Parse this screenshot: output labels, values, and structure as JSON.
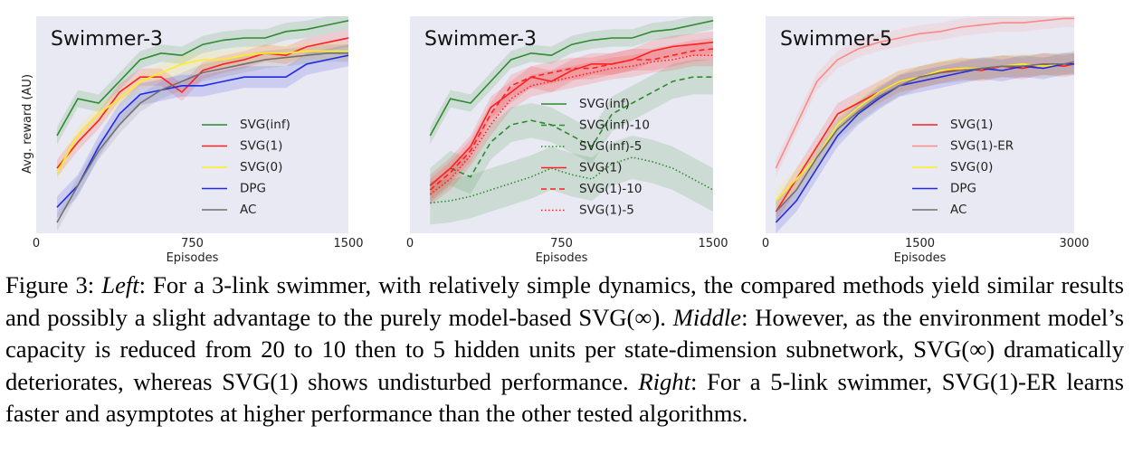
{
  "caption": {
    "label": "Figure 3:",
    "left_head": "Left",
    "left_text": ": For a 3-link swimmer, with relatively simple dynamics, the compared methods yield similar results and possibly a slight advantage to the purely model-based SVG(∞).",
    "middle_head": "Middle",
    "middle_text": ": However, as the environment model’s capacity is reduced from 20 to 10 then to 5 hidden units per state-dimension subnetwork, SVG(∞) dramatically deteriorates, whereas SVG(1) shows undisturbed performance.",
    "right_head": "Right",
    "right_text": ": For a 5-link swimmer, SVG(1)-ER learns faster and asymptotes at higher performance than the other tested algorithms."
  },
  "chart_data": [
    {
      "type": "line",
      "title": "Swimmer-3",
      "xlabel": "Episodes",
      "ylabel": "Avg. reward (AU)",
      "xlim": [
        0,
        1500
      ],
      "ylim": [
        0,
        1
      ],
      "xticks": [
        "0",
        "750",
        "1500"
      ],
      "grid": false,
      "legend_position": "lower-right",
      "background": "#e9e9f3",
      "x": [
        100,
        200,
        300,
        400,
        500,
        600,
        700,
        800,
        900,
        1000,
        1100,
        1200,
        1300,
        1400,
        1500
      ],
      "series": [
        {
          "name": "SVG(inf)",
          "color": "#2e8b2e",
          "style": "solid",
          "band": 0.04,
          "values": [
            0.45,
            0.62,
            0.6,
            0.7,
            0.8,
            0.83,
            0.82,
            0.87,
            0.89,
            0.9,
            0.9,
            0.93,
            0.94,
            0.96,
            0.98
          ]
        },
        {
          "name": "SVG(1)",
          "color": "#ff2020",
          "style": "solid",
          "band": 0.04,
          "values": [
            0.3,
            0.42,
            0.52,
            0.65,
            0.72,
            0.72,
            0.65,
            0.75,
            0.78,
            0.8,
            0.83,
            0.82,
            0.86,
            0.88,
            0.9
          ]
        },
        {
          "name": "SVG(0)",
          "color": "#ffee22",
          "style": "solid",
          "band": 0.04,
          "values": [
            0.28,
            0.45,
            0.55,
            0.62,
            0.7,
            0.74,
            0.78,
            0.8,
            0.8,
            0.82,
            0.83,
            0.83,
            0.84,
            0.84,
            0.84
          ]
        },
        {
          "name": "DPG",
          "color": "#1f2be0",
          "style": "solid",
          "band": 0.05,
          "values": [
            0.12,
            0.22,
            0.4,
            0.55,
            0.64,
            0.66,
            0.68,
            0.68,
            0.7,
            0.72,
            0.72,
            0.72,
            0.78,
            0.8,
            0.82
          ]
        },
        {
          "name": "AC",
          "color": "#707070",
          "style": "solid",
          "band": 0.04,
          "values": [
            0.05,
            0.22,
            0.38,
            0.5,
            0.6,
            0.66,
            0.7,
            0.74,
            0.76,
            0.78,
            0.8,
            0.81,
            0.82,
            0.83,
            0.83
          ]
        }
      ]
    },
    {
      "type": "line",
      "title": "Swimmer-3",
      "xlabel": "Episodes",
      "ylabel": "",
      "xlim": [
        0,
        1500
      ],
      "ylim": [
        0,
        1
      ],
      "xticks": [
        "0",
        "750",
        "1500"
      ],
      "grid": false,
      "legend_position": "center-right",
      "background": "#e9e9f3",
      "x": [
        100,
        200,
        300,
        400,
        500,
        600,
        700,
        800,
        900,
        1000,
        1100,
        1200,
        1300,
        1400,
        1500
      ],
      "series": [
        {
          "name": "SVG(inf)",
          "color": "#2e8b2e",
          "style": "solid",
          "band": 0.04,
          "values": [
            0.45,
            0.62,
            0.6,
            0.7,
            0.8,
            0.83,
            0.82,
            0.87,
            0.89,
            0.9,
            0.9,
            0.93,
            0.94,
            0.96,
            0.98
          ]
        },
        {
          "name": "SVG(inf)-10",
          "color": "#2e8b2e",
          "style": "dashed",
          "band": 0.08,
          "values": [
            0.22,
            0.3,
            0.26,
            0.42,
            0.5,
            0.52,
            0.5,
            0.45,
            0.4,
            0.55,
            0.6,
            0.65,
            0.7,
            0.72,
            0.72
          ]
        },
        {
          "name": "SVG(inf)-5",
          "color": "#2e8b2e",
          "style": "dotted",
          "band": 0.1,
          "values": [
            0.14,
            0.15,
            0.17,
            0.2,
            0.23,
            0.26,
            0.3,
            0.27,
            0.25,
            0.32,
            0.35,
            0.33,
            0.3,
            0.25,
            0.2
          ]
        },
        {
          "name": "SVG(1)",
          "color": "#ff2020",
          "style": "solid",
          "band": 0.05,
          "values": [
            0.22,
            0.3,
            0.4,
            0.58,
            0.65,
            0.72,
            0.7,
            0.75,
            0.78,
            0.78,
            0.8,
            0.84,
            0.86,
            0.87,
            0.88
          ]
        },
        {
          "name": "SVG(1)-10",
          "color": "#ff2020",
          "style": "dashed",
          "band": 0.05,
          "values": [
            0.2,
            0.28,
            0.38,
            0.55,
            0.68,
            0.72,
            0.74,
            0.76,
            0.76,
            0.78,
            0.8,
            0.8,
            0.82,
            0.84,
            0.85
          ]
        },
        {
          "name": "SVG(1)-5",
          "color": "#ff2020",
          "style": "dotted",
          "band": 0.05,
          "values": [
            0.18,
            0.25,
            0.36,
            0.5,
            0.62,
            0.68,
            0.7,
            0.72,
            0.74,
            0.76,
            0.77,
            0.79,
            0.8,
            0.82,
            0.82
          ]
        }
      ]
    },
    {
      "type": "line",
      "title": "Swimmer-5",
      "xlabel": "Episodes",
      "ylabel": "",
      "xlim": [
        0,
        3000
      ],
      "ylim": [
        0,
        1
      ],
      "xticks": [
        "0",
        "1500",
        "3000"
      ],
      "grid": false,
      "legend_position": "lower-right",
      "background": "#e9e9f3",
      "x": [
        100,
        300,
        500,
        700,
        900,
        1100,
        1300,
        1500,
        1700,
        1900,
        2100,
        2300,
        2500,
        2700,
        2900,
        3000
      ],
      "series": [
        {
          "name": "SVG(1)",
          "color": "#ff2020",
          "style": "solid",
          "band": 0.05,
          "values": [
            0.1,
            0.25,
            0.4,
            0.55,
            0.6,
            0.65,
            0.7,
            0.72,
            0.74,
            0.76,
            0.75,
            0.77,
            0.76,
            0.78,
            0.77,
            0.78
          ]
        },
        {
          "name": "SVG(1)-ER",
          "color": "#f88a8a",
          "style": "solid",
          "band": 0.04,
          "values": [
            0.3,
            0.5,
            0.7,
            0.8,
            0.85,
            0.88,
            0.9,
            0.92,
            0.93,
            0.95,
            0.96,
            0.97,
            0.97,
            0.98,
            0.99,
            0.99
          ]
        },
        {
          "name": "SVG(0)",
          "color": "#ffee22",
          "style": "solid",
          "band": 0.05,
          "values": [
            0.15,
            0.25,
            0.35,
            0.5,
            0.58,
            0.65,
            0.7,
            0.72,
            0.75,
            0.76,
            0.76,
            0.77,
            0.78,
            0.77,
            0.78,
            0.78
          ]
        },
        {
          "name": "DPG",
          "color": "#1f2be0",
          "style": "solid",
          "band": 0.05,
          "values": [
            0.05,
            0.15,
            0.3,
            0.45,
            0.55,
            0.62,
            0.68,
            0.7,
            0.72,
            0.74,
            0.76,
            0.75,
            0.77,
            0.76,
            0.78,
            0.78
          ]
        },
        {
          "name": "AC",
          "color": "#707070",
          "style": "solid",
          "band": 0.05,
          "values": [
            0.1,
            0.2,
            0.35,
            0.48,
            0.56,
            0.63,
            0.68,
            0.72,
            0.74,
            0.75,
            0.76,
            0.77,
            0.77,
            0.78,
            0.78,
            0.79
          ]
        }
      ]
    }
  ]
}
